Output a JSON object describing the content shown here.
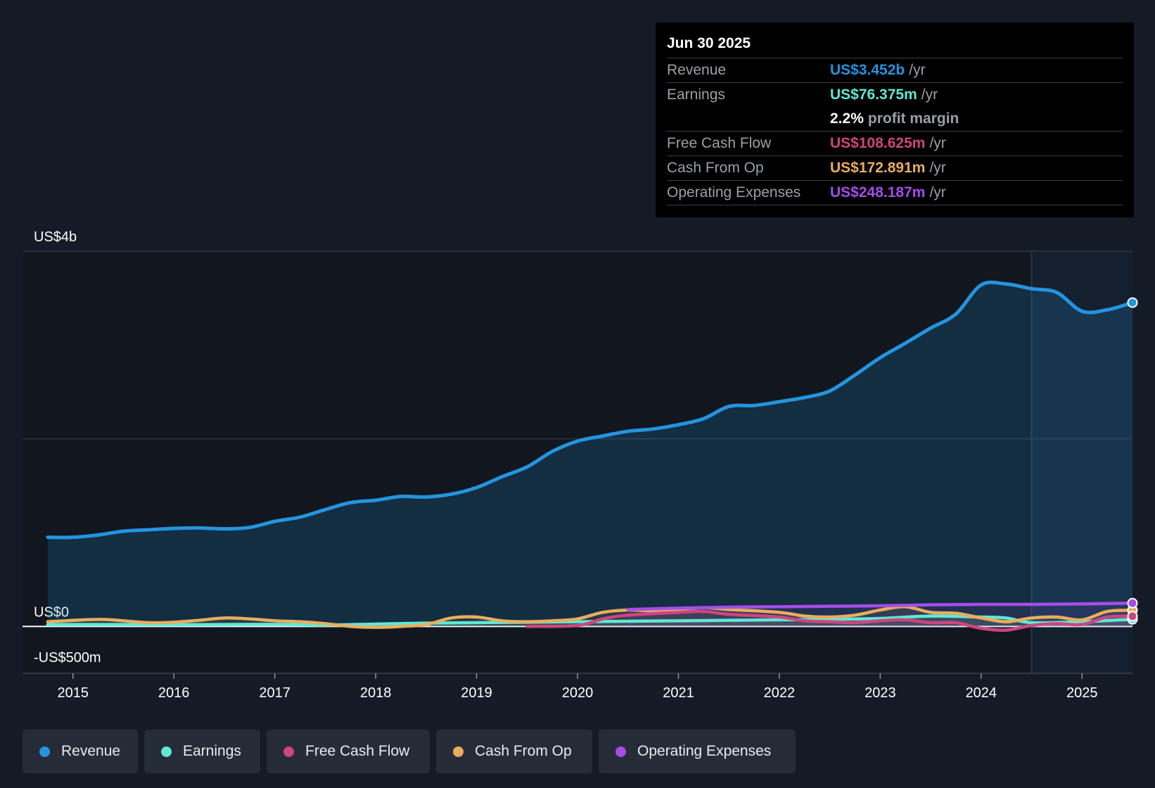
{
  "tooltip": {
    "date": "Jun 30 2025",
    "rows": {
      "revenue": {
        "label": "Revenue",
        "value": "US$3.452b",
        "unit": "/yr"
      },
      "earnings": {
        "label": "Earnings",
        "value": "US$76.375m",
        "unit": "/yr"
      },
      "margin": {
        "value": "2.2%",
        "label": "profit margin"
      },
      "fcf": {
        "label": "Free Cash Flow",
        "value": "US$108.625m",
        "unit": "/yr"
      },
      "cfo": {
        "label": "Cash From Op",
        "value": "US$172.891m",
        "unit": "/yr"
      },
      "opex": {
        "label": "Operating Expenses",
        "value": "US$248.187m",
        "unit": "/yr"
      }
    }
  },
  "legend": {
    "revenue": "Revenue",
    "earnings": "Earnings",
    "fcf": "Free Cash Flow",
    "cfo": "Cash From Op",
    "opex": "Operating Expenses"
  },
  "colors": {
    "revenue": "#2394df",
    "earnings": "#5ee8d5",
    "fcf": "#cc4680",
    "cfo": "#e8ad5e",
    "opex": "#a54de8",
    "background": "#151b26"
  },
  "chart_data": {
    "type": "line",
    "title": "",
    "xlabel": "",
    "ylabel": "",
    "ylim": [
      -500,
      4000
    ],
    "y_ticks": [
      {
        "value": 4000,
        "label": "US$4b"
      },
      {
        "value": 0,
        "label": "US$0"
      },
      {
        "value": -500,
        "label": "-US$500m"
      }
    ],
    "x_ticks": [
      "2015",
      "2016",
      "2017",
      "2018",
      "2019",
      "2020",
      "2021",
      "2022",
      "2023",
      "2024",
      "2025"
    ],
    "xlim": [
      2014.5,
      2025.5
    ],
    "forecast_start": 2024.5,
    "series": [
      {
        "name": "Revenue",
        "color_key": "revenue",
        "area": true,
        "x": [
          2014.75,
          2015.0,
          2015.25,
          2015.5,
          2015.75,
          2016.0,
          2016.25,
          2016.5,
          2016.75,
          2017.0,
          2017.25,
          2017.5,
          2017.75,
          2018.0,
          2018.25,
          2018.5,
          2018.75,
          2019.0,
          2019.25,
          2019.5,
          2019.75,
          2020.0,
          2020.25,
          2020.5,
          2020.75,
          2021.0,
          2021.25,
          2021.5,
          2021.75,
          2022.0,
          2022.25,
          2022.5,
          2022.75,
          2023.0,
          2023.25,
          2023.5,
          2023.75,
          2024.0,
          2024.25,
          2024.5,
          2024.75,
          2025.0,
          2025.25,
          2025.5
        ],
        "values": [
          950,
          950,
          975,
          1015,
          1030,
          1045,
          1050,
          1040,
          1055,
          1120,
          1165,
          1245,
          1320,
          1345,
          1385,
          1380,
          1410,
          1480,
          1595,
          1700,
          1865,
          1975,
          2030,
          2080,
          2105,
          2150,
          2215,
          2345,
          2355,
          2395,
          2440,
          2510,
          2680,
          2865,
          3020,
          3180,
          3330,
          3640,
          3650,
          3600,
          3560,
          3360,
          3375,
          3452
        ]
      },
      {
        "name": "Earnings",
        "color_key": "earnings",
        "x": [
          2014.75,
          2015.5,
          2016.0,
          2016.5,
          2017.0,
          2017.5,
          2018.0,
          2018.5,
          2019.0,
          2019.5,
          2020.0,
          2020.5,
          2021.0,
          2021.5,
          2022.0,
          2022.5,
          2023.0,
          2023.5,
          2024.0,
          2024.25,
          2024.5,
          2025.0,
          2025.5
        ],
        "values": [
          20,
          20,
          18,
          20,
          22,
          15,
          25,
          35,
          40,
          45,
          50,
          55,
          60,
          65,
          70,
          75,
          85,
          110,
          100,
          90,
          40,
          50,
          76
        ]
      },
      {
        "name": "Free Cash Flow",
        "color_key": "fcf",
        "x": [
          2019.5,
          2020.0,
          2020.25,
          2020.5,
          2021.0,
          2021.25,
          2021.5,
          2022.0,
          2022.25,
          2022.5,
          2022.75,
          2023.0,
          2023.25,
          2023.5,
          2023.75,
          2024.0,
          2024.25,
          2024.5,
          2024.75,
          2025.0,
          2025.25,
          2025.5
        ],
        "values": [
          0,
          10,
          80,
          120,
          150,
          160,
          130,
          100,
          60,
          50,
          40,
          60,
          70,
          40,
          40,
          -20,
          -40,
          10,
          30,
          20,
          100,
          109
        ]
      },
      {
        "name": "Cash From Op",
        "color_key": "cfo",
        "x": [
          2014.75,
          2015.25,
          2015.5,
          2015.75,
          2016.0,
          2016.25,
          2016.5,
          2016.75,
          2017.0,
          2017.25,
          2017.5,
          2017.75,
          2018.0,
          2018.25,
          2018.5,
          2018.75,
          2019.0,
          2019.25,
          2019.5,
          2019.75,
          2020.0,
          2020.25,
          2020.5,
          2020.75,
          2021.0,
          2021.25,
          2021.5,
          2022.0,
          2022.25,
          2022.5,
          2022.75,
          2023.0,
          2023.25,
          2023.5,
          2023.75,
          2024.0,
          2024.25,
          2024.5,
          2024.75,
          2025.0,
          2025.25,
          2025.5
        ],
        "values": [
          50,
          75,
          60,
          40,
          45,
          65,
          90,
          80,
          60,
          50,
          30,
          0,
          -10,
          0,
          20,
          90,
          100,
          60,
          50,
          60,
          80,
          150,
          175,
          165,
          180,
          200,
          180,
          150,
          110,
          100,
          120,
          175,
          210,
          150,
          140,
          90,
          50,
          90,
          100,
          70,
          160,
          173
        ]
      },
      {
        "name": "Operating Expenses",
        "color_key": "opex",
        "x": [
          2020.5,
          2021.0,
          2021.5,
          2022.0,
          2022.5,
          2023.0,
          2023.5,
          2024.0,
          2024.5,
          2025.0,
          2025.5
        ],
        "values": [
          180,
          195,
          205,
          210,
          215,
          220,
          230,
          235,
          235,
          240,
          248
        ]
      }
    ]
  }
}
